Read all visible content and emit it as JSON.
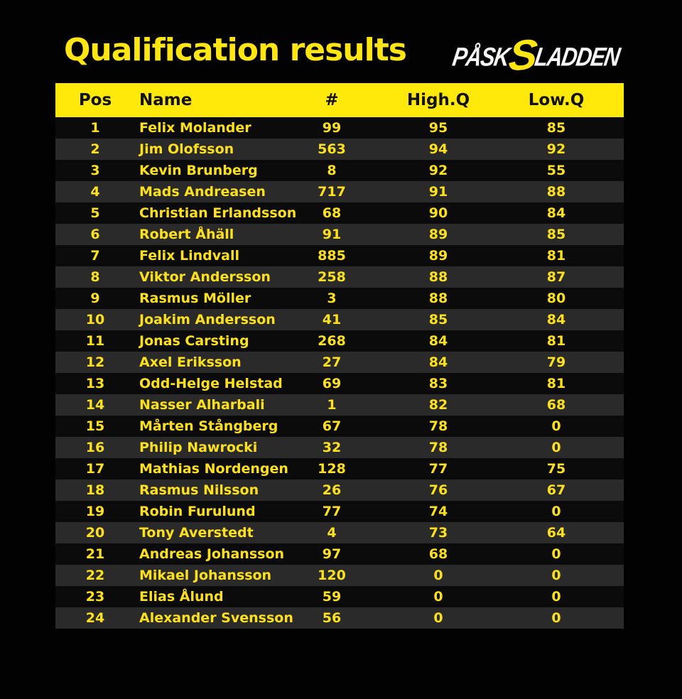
{
  "page": {
    "title": "Qualification results"
  },
  "logo": {
    "part1": "PÅSK",
    "accent": "S",
    "part2": "LADDEN"
  },
  "colors": {
    "accent_yellow": "#FFE512",
    "header_bar_yellow": "#FFE90A",
    "row_alt_gray": "#2A2A2A",
    "row_dark": "#0B0B0B",
    "background": "#020202",
    "header_text_dark": "#121212",
    "logo_white": "#F5F5F5"
  },
  "chart_data": {
    "type": "table",
    "title": "Qualification results",
    "columns": [
      "Pos",
      "Name",
      "#",
      "High.Q",
      "Low.Q"
    ],
    "rows": [
      [
        "1",
        "Felix Molander",
        "99",
        "95",
        "85"
      ],
      [
        "2",
        "Jim Olofsson",
        "563",
        "94",
        "92"
      ],
      [
        "3",
        "Kevin Brunberg",
        "8",
        "92",
        "55"
      ],
      [
        "4",
        "Mads Andreasen",
        "717",
        "91",
        "88"
      ],
      [
        "5",
        "Christian Erlandsson",
        "68",
        "90",
        "84"
      ],
      [
        "6",
        "Robert Åhäll",
        "91",
        "89",
        "85"
      ],
      [
        "7",
        "Felix Lindvall",
        "885",
        "89",
        "81"
      ],
      [
        "8",
        "Viktor Andersson",
        "258",
        "88",
        "87"
      ],
      [
        "9",
        "Rasmus Möller",
        "3",
        "88",
        "80"
      ],
      [
        "10",
        "Joakim Andersson",
        "41",
        "85",
        "84"
      ],
      [
        "11",
        "Jonas Carsting",
        "268",
        "84",
        "81"
      ],
      [
        "12",
        "Axel Eriksson",
        "27",
        "84",
        "79"
      ],
      [
        "13",
        "Odd-Helge Helstad",
        "69",
        "83",
        "81"
      ],
      [
        "14",
        "Nasser Alharbali",
        "1",
        "82",
        "68"
      ],
      [
        "15",
        "Mårten Stångberg",
        "67",
        "78",
        "0"
      ],
      [
        "16",
        "Philip Nawrocki",
        "32",
        "78",
        "0"
      ],
      [
        "17",
        "Mathias Nordengen",
        "128",
        "77",
        "75"
      ],
      [
        "18",
        "Rasmus Nilsson",
        "26",
        "76",
        "67"
      ],
      [
        "19",
        "Robin Furulund",
        "77",
        "74",
        "0"
      ],
      [
        "20",
        "Tony Averstedt",
        "4",
        "73",
        "64"
      ],
      [
        "21",
        "Andreas Johansson",
        "97",
        "68",
        "0"
      ],
      [
        "22",
        "Mikael Johansson",
        "120",
        "0",
        "0"
      ],
      [
        "23",
        "Elias Ålund",
        "59",
        "0",
        "0"
      ],
      [
        "24",
        "Alexander Svensson",
        "56",
        "0",
        "0"
      ]
    ]
  }
}
